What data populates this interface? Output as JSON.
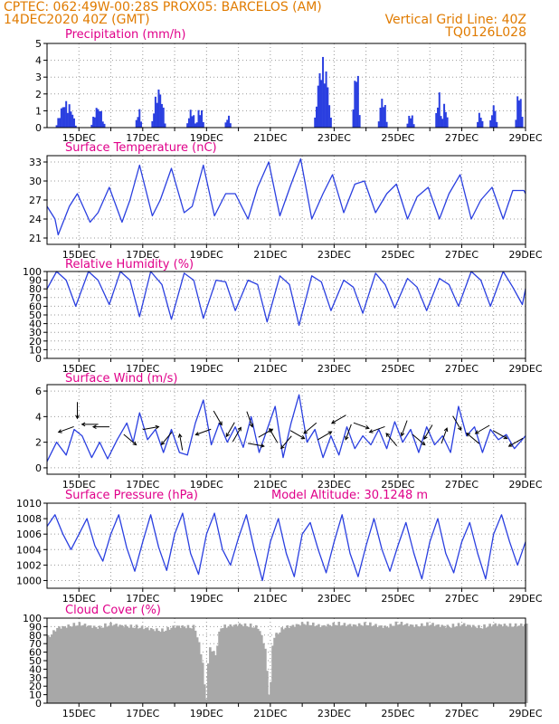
{
  "header": {
    "line1": "CPTEC:   062:49W-00:28S   PROX05: BARCELOS (AM)",
    "line2_left": "14DEC2020 40Z (GMT)",
    "line2_right": "Vertical Grid Line: 40Z",
    "line3_right": "TQ0126L028"
  },
  "colors": {
    "header": "#e07b00",
    "title": "#e0008a",
    "line": "#2a3fe0",
    "cloud": "#a8a8a8",
    "grid": "#9a9a9a"
  },
  "x_tick_labels": [
    "15DEC",
    "17DEC",
    "19DEC",
    "21DEC",
    "23DEC",
    "25DEC",
    "27DEC",
    "29DEC"
  ],
  "chart_data": [
    {
      "type": "bar",
      "title": "Precipitation (mm/h)",
      "ylim": [
        0,
        5
      ],
      "yticks": [
        0,
        1,
        2,
        3,
        4,
        5
      ],
      "x_range_days": [
        14.0,
        29.0
      ],
      "grid": true,
      "events": [
        {
          "start": 14.3,
          "end": 14.9,
          "peak": 1.6
        },
        {
          "start": 15.4,
          "end": 15.8,
          "peak": 1.3
        },
        {
          "start": 16.8,
          "end": 16.95,
          "peak": 1.2
        },
        {
          "start": 17.3,
          "end": 17.7,
          "peak": 2.4
        },
        {
          "start": 18.4,
          "end": 18.65,
          "peak": 1.1
        },
        {
          "start": 18.7,
          "end": 18.9,
          "peak": 1.3
        },
        {
          "start": 19.6,
          "end": 19.75,
          "peak": 0.8
        },
        {
          "start": 22.4,
          "end": 22.9,
          "peak": 4.2
        },
        {
          "start": 23.6,
          "end": 23.8,
          "peak": 3.8
        },
        {
          "start": 24.4,
          "end": 24.65,
          "peak": 1.9
        },
        {
          "start": 25.3,
          "end": 25.5,
          "peak": 0.9
        },
        {
          "start": 26.2,
          "end": 26.35,
          "peak": 2.3
        },
        {
          "start": 26.4,
          "end": 26.55,
          "peak": 1.6
        },
        {
          "start": 27.5,
          "end": 27.65,
          "peak": 1.0
        },
        {
          "start": 27.9,
          "end": 28.1,
          "peak": 1.4
        },
        {
          "start": 28.7,
          "end": 28.9,
          "peak": 2.3
        }
      ]
    },
    {
      "type": "line",
      "title": "Surface Temperature (nC)",
      "ylim": [
        20,
        34
      ],
      "yticks": [
        21,
        24,
        27,
        30,
        33
      ],
      "grid": true,
      "x": [
        14.0,
        14.25,
        14.35,
        14.7,
        14.95,
        15.35,
        15.6,
        15.95,
        16.35,
        16.6,
        16.9,
        17.3,
        17.55,
        17.9,
        18.3,
        18.55,
        18.9,
        19.25,
        19.6,
        19.9,
        20.3,
        20.6,
        20.95,
        21.3,
        21.65,
        21.95,
        22.3,
        22.65,
        22.95,
        23.3,
        23.65,
        23.95,
        24.3,
        24.65,
        24.95,
        25.3,
        25.6,
        25.95,
        26.3,
        26.6,
        26.95,
        27.3,
        27.6,
        27.95,
        28.3,
        28.6,
        28.95,
        29.0
      ],
      "values": [
        26,
        24,
        21.5,
        26,
        28,
        23.5,
        25,
        29,
        23.5,
        27,
        32.5,
        24.5,
        27,
        32,
        25,
        26,
        32.5,
        24.5,
        28,
        28,
        24,
        29,
        33,
        24.5,
        29.5,
        33.5,
        24,
        28,
        31,
        25,
        29.5,
        30,
        25,
        28,
        29.5,
        24,
        27.5,
        29,
        24,
        28,
        31,
        24,
        27,
        29,
        24,
        28.5,
        28.5,
        28
      ]
    },
    {
      "type": "line",
      "title": "Relative Humidity (%)",
      "ylim": [
        0,
        100
      ],
      "yticks": [
        0,
        10,
        20,
        30,
        40,
        50,
        60,
        70,
        80,
        90,
        100
      ],
      "grid": true,
      "x": [
        14.0,
        14.3,
        14.6,
        14.9,
        15.3,
        15.6,
        15.95,
        16.3,
        16.6,
        16.9,
        17.25,
        17.6,
        17.9,
        18.3,
        18.6,
        18.9,
        19.3,
        19.6,
        19.9,
        20.3,
        20.6,
        20.9,
        21.3,
        21.6,
        21.9,
        22.3,
        22.6,
        22.9,
        23.3,
        23.6,
        23.9,
        24.3,
        24.6,
        24.9,
        25.3,
        25.6,
        25.9,
        26.3,
        26.6,
        26.9,
        27.3,
        27.6,
        27.9,
        28.3,
        28.6,
        28.9,
        29.0
      ],
      "values": [
        80,
        100,
        90,
        60,
        100,
        90,
        62,
        100,
        90,
        48,
        100,
        85,
        45,
        98,
        90,
        46,
        90,
        88,
        55,
        90,
        85,
        42,
        95,
        85,
        38,
        95,
        88,
        55,
        90,
        82,
        52,
        98,
        85,
        58,
        92,
        82,
        55,
        92,
        85,
        60,
        100,
        90,
        60,
        100,
        82,
        62,
        80
      ]
    },
    {
      "type": "line",
      "title": "Surface Wind (m/s)",
      "ylim": [
        -0.5,
        6.5
      ],
      "yticks": [
        0,
        2,
        4,
        6
      ],
      "grid": true,
      "x": [
        14.0,
        14.3,
        14.6,
        14.85,
        15.1,
        15.4,
        15.65,
        15.9,
        16.2,
        16.5,
        16.7,
        16.9,
        17.15,
        17.4,
        17.65,
        17.9,
        18.15,
        18.4,
        18.65,
        18.9,
        19.15,
        19.4,
        19.65,
        19.9,
        20.15,
        20.4,
        20.65,
        20.9,
        21.15,
        21.4,
        21.65,
        21.9,
        22.15,
        22.4,
        22.65,
        22.9,
        23.15,
        23.4,
        23.65,
        23.9,
        24.15,
        24.4,
        24.65,
        24.9,
        25.15,
        25.4,
        25.65,
        25.9,
        26.15,
        26.4,
        26.65,
        26.9,
        27.15,
        27.4,
        27.65,
        27.9,
        28.15,
        28.4,
        28.65,
        29.0
      ],
      "values": [
        0.5,
        2.0,
        1.0,
        3.0,
        2.5,
        0.8,
        2.0,
        0.7,
        2.2,
        3.5,
        2.0,
        4.3,
        2.2,
        3.0,
        1.2,
        3.0,
        1.2,
        1.0,
        3.5,
        5.3,
        1.8,
        3.5,
        2.0,
        3.2,
        1.6,
        4.0,
        1.2,
        3.0,
        4.8,
        0.8,
        3.5,
        5.7,
        2.0,
        3.0,
        0.8,
        2.5,
        1.0,
        3.2,
        1.5,
        2.5,
        1.8,
        3.0,
        1.5,
        3.6,
        2.0,
        3.0,
        1.2,
        3.2,
        1.8,
        2.5,
        1.2,
        4.8,
        2.5,
        3.2,
        1.2,
        3.0,
        2.2,
        2.6,
        1.5,
        2.5
      ]
    },
    {
      "type": "line",
      "title": "Surface Pressure (hPa)",
      "annotation": "Model Altitude: 30.1248 m",
      "ylim": [
        999,
        1010
      ],
      "yticks": [
        1000,
        1002,
        1004,
        1006,
        1008,
        1010
      ],
      "grid": true,
      "x": [
        14.0,
        14.25,
        14.5,
        14.75,
        15.0,
        15.25,
        15.5,
        15.75,
        16.0,
        16.25,
        16.5,
        16.75,
        17.0,
        17.25,
        17.5,
        17.75,
        18.0,
        18.25,
        18.5,
        18.75,
        19.0,
        19.25,
        19.5,
        19.75,
        20.0,
        20.25,
        20.5,
        20.75,
        21.0,
        21.25,
        21.5,
        21.75,
        22.0,
        22.25,
        22.5,
        22.75,
        23.0,
        23.25,
        23.5,
        23.75,
        24.0,
        24.25,
        24.5,
        24.75,
        25.0,
        25.25,
        25.5,
        25.75,
        26.0,
        26.25,
        26.5,
        26.75,
        27.0,
        27.25,
        27.5,
        27.75,
        28.0,
        28.25,
        28.5,
        28.75,
        29.0
      ],
      "values": [
        1007,
        1008.5,
        1006,
        1004,
        1006,
        1008,
        1004.5,
        1002.5,
        1006,
        1008.5,
        1004.2,
        1001.2,
        1005,
        1008.5,
        1004.3,
        1001.3,
        1006,
        1008.7,
        1003.5,
        1000.8,
        1006,
        1008.7,
        1004,
        1002,
        1005.5,
        1008.5,
        1004,
        1000,
        1005,
        1008,
        1003.5,
        1000.5,
        1006,
        1007.5,
        1004,
        1001,
        1005,
        1008.5,
        1003.5,
        1000.5,
        1004.5,
        1008,
        1004,
        1001.2,
        1004.5,
        1007.5,
        1003.5,
        1000.2,
        1005,
        1008,
        1003.5,
        1001,
        1005,
        1007.5,
        1003.5,
        1000.2,
        1006,
        1008.5,
        1005,
        1002,
        1005
      ]
    },
    {
      "type": "bar",
      "title": "Cloud Cover (%)",
      "ylim": [
        0,
        100
      ],
      "yticks": [
        0,
        10,
        20,
        30,
        40,
        50,
        60,
        70,
        80,
        90,
        100
      ],
      "grid": true,
      "x_range_days": [
        14.0,
        29.0
      ],
      "profile": [
        {
          "x": 14.0,
          "v": 80
        },
        {
          "x": 14.3,
          "v": 92
        },
        {
          "x": 15.0,
          "v": 96
        },
        {
          "x": 15.6,
          "v": 92
        },
        {
          "x": 16.0,
          "v": 96
        },
        {
          "x": 16.6,
          "v": 93
        },
        {
          "x": 17.0,
          "v": 92
        },
        {
          "x": 17.6,
          "v": 88
        },
        {
          "x": 18.0,
          "v": 94
        },
        {
          "x": 18.6,
          "v": 92
        },
        {
          "x": 18.75,
          "v": 70
        },
        {
          "x": 18.85,
          "v": 50
        },
        {
          "x": 18.95,
          "v": 2
        },
        {
          "x": 19.05,
          "v": 70
        },
        {
          "x": 19.25,
          "v": 60
        },
        {
          "x": 19.4,
          "v": 92
        },
        {
          "x": 20.0,
          "v": 96
        },
        {
          "x": 20.6,
          "v": 92
        },
        {
          "x": 20.8,
          "v": 70
        },
        {
          "x": 20.95,
          "v": 3
        },
        {
          "x": 21.05,
          "v": 80
        },
        {
          "x": 21.4,
          "v": 92
        },
        {
          "x": 22.0,
          "v": 97
        },
        {
          "x": 22.6,
          "v": 94
        },
        {
          "x": 23.0,
          "v": 96
        },
        {
          "x": 23.6,
          "v": 95
        },
        {
          "x": 24.0,
          "v": 96
        },
        {
          "x": 24.6,
          "v": 93
        },
        {
          "x": 25.0,
          "v": 97
        },
        {
          "x": 25.6,
          "v": 94
        },
        {
          "x": 26.0,
          "v": 96
        },
        {
          "x": 26.6,
          "v": 93
        },
        {
          "x": 27.0,
          "v": 96
        },
        {
          "x": 27.6,
          "v": 92
        },
        {
          "x": 28.0,
          "v": 96
        },
        {
          "x": 28.6,
          "v": 94
        },
        {
          "x": 29.0,
          "v": 96
        }
      ]
    }
  ]
}
